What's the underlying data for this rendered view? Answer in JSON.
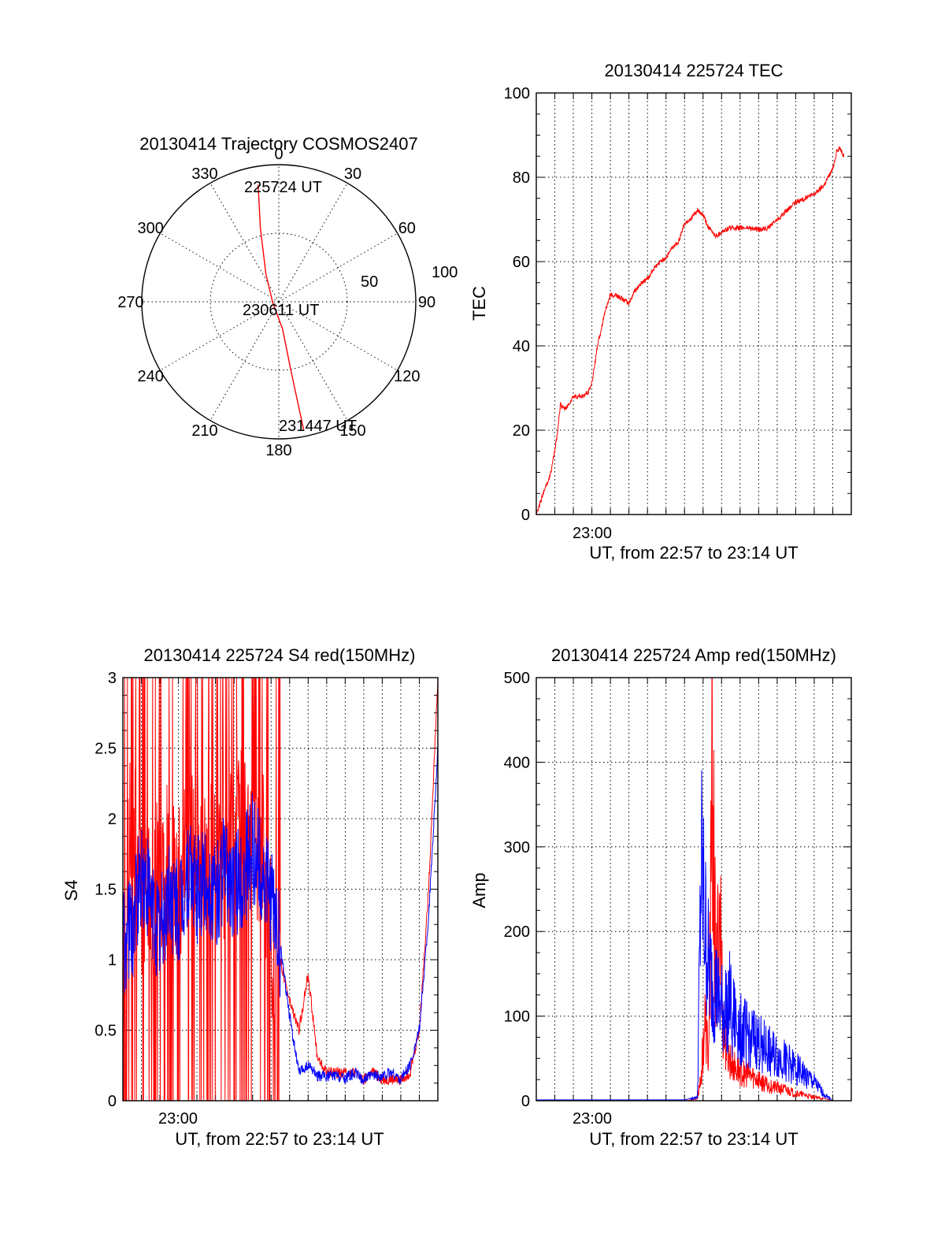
{
  "colors": {
    "red": "#ff0000",
    "blue": "#0000ff",
    "axis": "#000000"
  },
  "chart_data": [
    {
      "type": "polar",
      "title": "20130414 Trajectory COSMOS2407",
      "azimuth_labels": [
        "0",
        "30",
        "60",
        "90",
        "120",
        "150",
        "180",
        "210",
        "240",
        "270",
        "300",
        "330"
      ],
      "radius_labels": [
        "50",
        "100"
      ],
      "start_label": "225724 UT",
      "mid_label": "230611 UT",
      "end_label": "231447 UT",
      "trajectory": {
        "color": "red",
        "points": [
          {
            "az": -10,
            "el": 12
          },
          {
            "az": -14,
            "el": 40
          },
          {
            "az": -25,
            "el": 70
          },
          {
            "az": -100,
            "el": 86
          },
          {
            "az": 172,
            "el": 72
          },
          {
            "az": 170,
            "el": 45
          },
          {
            "az": 169,
            "el": 4
          }
        ]
      }
    },
    {
      "type": "line",
      "title": "20130414 225724 TEC",
      "ylabel": "TEC",
      "xlabel": "UT, from 22:57 to 23:14 UT",
      "xtick_label": "23:00",
      "ylim": [
        0,
        100
      ],
      "yticks": [
        "0",
        "20",
        "40",
        "60",
        "80",
        "100"
      ],
      "series": [
        {
          "color": "red",
          "x_min": [
            0,
            0.3,
            0.8,
            1.1,
            1.3,
            1.6,
            2.0,
            2.5,
            2.8,
            3.0,
            3.3,
            3.7,
            4.0,
            4.3,
            4.7,
            5.0,
            5.3,
            5.7,
            6.0,
            6.3,
            6.7,
            7.0,
            7.3,
            7.7,
            8.0,
            8.3,
            8.7,
            9.0,
            9.3,
            9.7,
            10.0,
            10.5,
            11.0,
            11.5,
            12.0,
            12.5,
            13.0,
            13.5,
            14.0,
            14.5,
            15.0,
            15.5,
            16.0,
            16.2,
            16.4,
            16.6
          ],
          "y": [
            0,
            4,
            10,
            18,
            26,
            25,
            28,
            28,
            29,
            31,
            40,
            48,
            52,
            52,
            51,
            50,
            53,
            55,
            56,
            58,
            60,
            61,
            63,
            65,
            69,
            70,
            72,
            71,
            68,
            66,
            67,
            68,
            68,
            68,
            67.5,
            68,
            70,
            72,
            74,
            75,
            76,
            78,
            82,
            86,
            87,
            85
          ]
        }
      ]
    },
    {
      "type": "line",
      "title": "20130414 225724 S4 red(150MHz)",
      "ylabel": "S4",
      "xlabel": "UT, from 22:57 to 23:14 UT",
      "xtick_label": "23:00",
      "ylim": [
        0,
        3
      ],
      "yticks": [
        "0",
        "0.5",
        "1",
        "1.5",
        "2",
        "2.5",
        "3"
      ],
      "series": [
        {
          "color": "red",
          "x_min": [
            0,
            0.5,
            1.0,
            1.5,
            2.0,
            2.5,
            3.0,
            3.5,
            4.0,
            4.5,
            5.0,
            5.5,
            6.0,
            6.5,
            7.0,
            7.5,
            8.0,
            8.5,
            9.0,
            9.5,
            10.0,
            10.5,
            11.0,
            11.5,
            12.0,
            12.5,
            13.0,
            13.5,
            14.0,
            14.5,
            15.0,
            15.5,
            16.0,
            16.5,
            17.0
          ],
          "y": [
            1.2,
            2.0,
            1.5,
            1.4,
            1.6,
            1.8,
            1.5,
            1.7,
            2.0,
            1.6,
            1.8,
            1.7,
            2.0,
            1.9,
            1.8,
            1.9,
            1.2,
            1.0,
            0.7,
            0.5,
            0.9,
            0.3,
            0.2,
            0.2,
            0.2,
            0.2,
            0.15,
            0.2,
            0.15,
            0.15,
            0.15,
            0.2,
            0.5,
            1.5,
            3.0
          ]
        },
        {
          "color": "blue",
          "x_min": [
            0,
            0.5,
            1.0,
            1.5,
            2.0,
            2.5,
            3.0,
            3.5,
            4.0,
            4.5,
            5.0,
            5.5,
            6.0,
            6.5,
            7.0,
            7.5,
            8.0,
            8.5,
            9.0,
            9.5,
            10.0,
            10.5,
            11.0,
            11.5,
            12.0,
            12.5,
            13.0,
            13.5,
            14.0,
            14.5,
            15.0,
            15.5,
            16.0,
            16.5,
            17.0
          ],
          "y": [
            1.1,
            1.2,
            1.6,
            1.4,
            1.2,
            1.5,
            1.3,
            1.6,
            1.5,
            1.6,
            1.4,
            1.7,
            1.5,
            1.6,
            1.8,
            1.6,
            1.4,
            1.1,
            0.6,
            0.2,
            0.25,
            0.18,
            0.17,
            0.18,
            0.16,
            0.2,
            0.15,
            0.18,
            0.17,
            0.2,
            0.15,
            0.25,
            0.5,
            1.3,
            2.5
          ]
        }
      ]
    },
    {
      "type": "line",
      "title": "20130414 225724 Amp red(150MHz)",
      "ylabel": "Amp",
      "xlabel": "UT, from 22:57 to 23:14 UT",
      "xtick_label": "23:00",
      "ylim": [
        0,
        500
      ],
      "yticks": [
        "0",
        "100",
        "200",
        "300",
        "400",
        "500"
      ],
      "series": [
        {
          "color": "red",
          "x_min": [
            0,
            2,
            4,
            6,
            8,
            8.7,
            8.9,
            9.1,
            9.3,
            9.5,
            9.7,
            9.9,
            10.1,
            10.4,
            10.7,
            11.0,
            11.5,
            12.0,
            12.5,
            13.0,
            13.5,
            14.0,
            14.5,
            15.0,
            15.5,
            16.0
          ],
          "y": [
            0,
            0,
            0,
            0,
            0,
            2,
            40,
            110,
            60,
            470,
            150,
            280,
            90,
            60,
            45,
            40,
            35,
            30,
            20,
            18,
            15,
            10,
            8,
            5,
            3,
            0
          ]
        },
        {
          "color": "blue",
          "x_min": [
            0,
            2,
            4,
            6,
            8,
            8.7,
            8.9,
            9.1,
            9.3,
            9.5,
            9.7,
            9.9,
            10.1,
            10.4,
            10.7,
            11.0,
            11.5,
            12.0,
            12.5,
            13.0,
            13.5,
            14.0,
            14.5,
            15.0,
            15.5,
            16.0
          ],
          "y": [
            1,
            1,
            1,
            1,
            1,
            5,
            320,
            240,
            180,
            160,
            150,
            130,
            120,
            140,
            110,
            100,
            90,
            80,
            70,
            60,
            55,
            45,
            35,
            25,
            10,
            0
          ]
        }
      ]
    }
  ]
}
